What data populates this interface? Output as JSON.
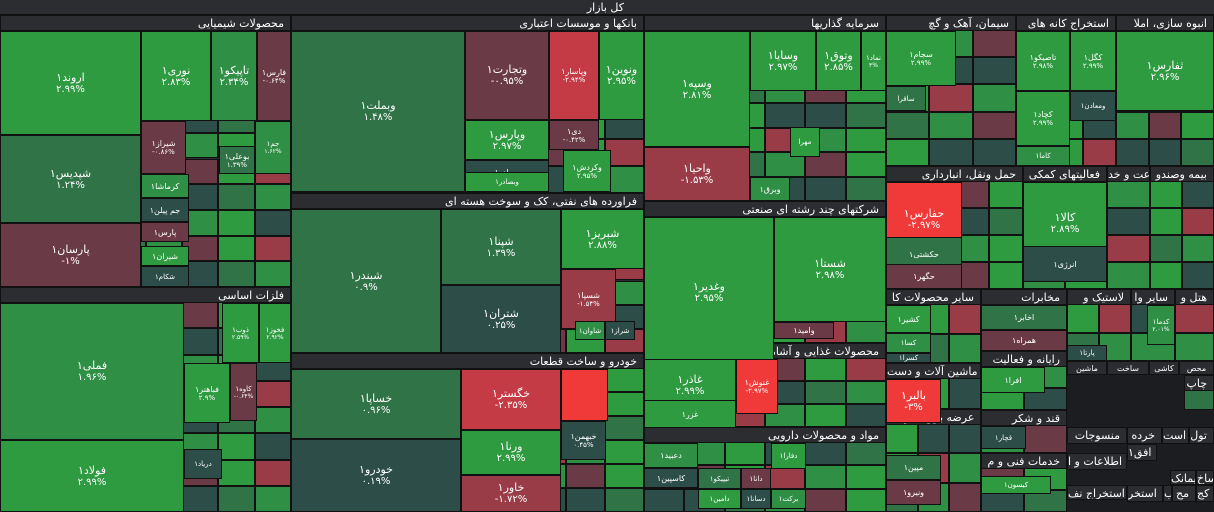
{
  "root_label": "کل بازار",
  "colors": {
    "up_strong": "#2e9b41",
    "up_mid": "#2f8f45",
    "up_soft": "#2f7347",
    "flat": "#2c4d48",
    "down_soft": "#6b3a47",
    "down_mid": "#9a3c48",
    "down_strong": "#c43a45",
    "down_max": "#f03a3a"
  },
  "chart_data": {
    "type": "treemap",
    "title": "کل بازار",
    "sectors": [
      {
        "name": "محصولات شیمیایی",
        "stocks": [
          {
            "name": "اروند۱",
            "change": "۲.۹۹%"
          },
          {
            "name": "نوری۱",
            "change": "۲.۸۳%"
          },
          {
            "name": "تاپیکو۱",
            "change": "۲.۳۴%"
          },
          {
            "name": "فارس۱",
            "change": "-۰.۶۴%"
          },
          {
            "name": "شپدیس۱",
            "change": "۱.۲۴%"
          },
          {
            "name": "شیراز۱",
            "change": "-۰.۸۶%"
          },
          {
            "name": "بوعلی۱",
            "change": "۱.۳۹%"
          },
          {
            "name": "جم۱",
            "change": "۱.۶۲%"
          },
          {
            "name": "کرماشا۱",
            "change": ""
          },
          {
            "name": "جم پیلن۱",
            "change": ""
          },
          {
            "name": "پارسان۱",
            "change": "-۱%"
          },
          {
            "name": "پارس۱",
            "change": ""
          },
          {
            "name": "شیران۱",
            "change": ""
          },
          {
            "name": "شکام۱",
            "change": ""
          }
        ]
      },
      {
        "name": "بانکها و موسسات اعتباری",
        "stocks": [
          {
            "name": "وبملت۱",
            "change": "۱.۴۸%"
          },
          {
            "name": "وتجارت۱",
            "change": "-۰.۹۵%"
          },
          {
            "name": "وپاسار۱",
            "change": "-۲.۹۴%"
          },
          {
            "name": "ونوین۱",
            "change": "۲.۹۵%"
          },
          {
            "name": "وپارس۱",
            "change": "۲.۹۷%"
          },
          {
            "name": "دی۱",
            "change": "-۰.۴۲%"
          },
          {
            "name": "وصادر۱",
            "change": "-۰.۱۹%"
          },
          {
            "name": "وبصادر۱",
            "change": ""
          },
          {
            "name": "وکردش۱",
            "change": "۲.۹۵%"
          }
        ]
      },
      {
        "name": "سرمایه گذاریها",
        "stocks": [
          {
            "name": "وسپه۱",
            "change": "۲.۸۱%"
          },
          {
            "name": "وسایا۱",
            "change": "۲.۹۷%"
          },
          {
            "name": "وتوق۱",
            "change": "۲.۸۵%"
          },
          {
            "name": "نماد۱",
            "change": "۳%"
          },
          {
            "name": "واحیا۱",
            "change": "-۱.۵۳%"
          },
          {
            "name": "مهرا",
            "change": ""
          },
          {
            "name": "وبرق۱",
            "change": ""
          }
        ]
      },
      {
        "name": "سیمان، آهک و گچ",
        "stocks": [
          {
            "name": "سجام۱",
            "change": "۲.۹۹%"
          },
          {
            "name": "ساقرا",
            "change": ""
          }
        ]
      },
      {
        "name": "استخراج کانه های",
        "stocks": [
          {
            "name": "تاصیکو۱",
            "change": "۲.۹۸%"
          },
          {
            "name": "کگل۱",
            "change": "۲.۹۹%"
          },
          {
            "name": "ومعادن۱",
            "change": ""
          },
          {
            "name": "کچاد۱",
            "change": "۲.۹۹%"
          },
          {
            "name": "کاما۱",
            "change": ""
          }
        ]
      },
      {
        "name": "انبوه سازی، املا",
        "stocks": [
          {
            "name": "ثفارس۱",
            "change": "۲.۹۶%"
          }
        ]
      },
      {
        "name": "فلزات اساسی",
        "stocks": [
          {
            "name": "فملی۱",
            "change": "۱.۹۶%"
          },
          {
            "name": "فولاد۱",
            "change": "۲.۹۹%"
          },
          {
            "name": "ذوب۱",
            "change": "۲.۵۹%"
          },
          {
            "name": "فخوز۱",
            "change": "۲.۹۲%"
          },
          {
            "name": "فباهنر۱",
            "change": "۲.۹%"
          },
          {
            "name": "کاوه۱",
            "change": "-۰.۶۴%"
          },
          {
            "name": "دریاد۱",
            "change": ""
          }
        ]
      },
      {
        "name": "فراورده های نفتی، کک و سوخت هسته ای",
        "stocks": [
          {
            "name": "شبندر۱",
            "change": "۰.۹%"
          },
          {
            "name": "شپنا۱",
            "change": "۱.۳۹%"
          },
          {
            "name": "شبریز۱",
            "change": "۲.۸۸%"
          },
          {
            "name": "شتران۱",
            "change": "۰.۲۵%"
          },
          {
            "name": "شسپا۱",
            "change": "-۱.۵۴%"
          },
          {
            "name": "شاوان۱",
            "change": ""
          },
          {
            "name": "شراز۱",
            "change": ""
          }
        ]
      },
      {
        "name": "خودرو و ساخت قطعات",
        "stocks": [
          {
            "name": "خساپا۱",
            "change": "۰.۹۶%"
          },
          {
            "name": "خگستر۱",
            "change": "-۲.۳۵%"
          },
          {
            "name": "خبهمن۱",
            "change": "۰.۴۵%"
          },
          {
            "name": "خودرو۱",
            "change": "۰.۱۹%"
          },
          {
            "name": "ورنا۱",
            "change": "۲.۹۹%"
          },
          {
            "name": "خاور۱",
            "change": "-۱.۷۲%"
          }
        ]
      },
      {
        "name": "شرکتهای چند رشته ای صنعتی",
        "stocks": [
          {
            "name": "وغدیر۱",
            "change": "۲.۹۵%"
          },
          {
            "name": "شستا۱",
            "change": "۲.۹۸%"
          },
          {
            "name": "وامید۱",
            "change": ""
          }
        ]
      },
      {
        "name": "محصولات غذایی و آشامیدنی به جز قند و شکر",
        "stocks": [
          {
            "name": "غاذر۱",
            "change": "۲.۹۹%"
          },
          {
            "name": "غنوش۱",
            "change": "-۲.۹۷%"
          },
          {
            "name": "غزر۱",
            "change": ""
          }
        ]
      },
      {
        "name": "مواد و محصولات دارویی",
        "stocks": [
          {
            "name": "دعبید۱",
            "change": ""
          },
          {
            "name": "کاسپین۱",
            "change": ""
          },
          {
            "name": "تیپیکو۱",
            "change": ""
          },
          {
            "name": "دانا۱",
            "change": ""
          },
          {
            "name": "دامین۱",
            "change": ""
          },
          {
            "name": "دسانا۱",
            "change": ""
          },
          {
            "name": "دفارا۱",
            "change": ""
          },
          {
            "name": "برکت۱",
            "change": ""
          }
        ]
      },
      {
        "name": "حمل ونقل، انبارداری",
        "stocks": [
          {
            "name": "حفارس۱",
            "change": "-۲.۹۷%"
          },
          {
            "name": "حکشتی۱",
            "change": ""
          },
          {
            "name": "حگهر۱",
            "change": ""
          }
        ]
      },
      {
        "name": "فعالیتهای کمکی",
        "stocks": [
          {
            "name": "کالا۱",
            "change": "۲.۸۹%"
          },
          {
            "name": "انرژی۱",
            "change": ""
          }
        ]
      },
      {
        "name": "زراعت و خد",
        "stocks": []
      },
      {
        "name": "بیمه وصندو",
        "stocks": []
      },
      {
        "name": "سایر محصولات کا",
        "stocks": [
          {
            "name": "کشیر۱",
            "change": ""
          },
          {
            "name": "کسا۱",
            "change": ""
          },
          {
            "name": "کسرا۱",
            "change": ""
          }
        ]
      },
      {
        "name": "مخابرات",
        "stocks": [
          {
            "name": "اخابر۱",
            "change": ""
          },
          {
            "name": "همراه۱",
            "change": ""
          }
        ]
      },
      {
        "name": "لاستیک و",
        "stocks": [
          {
            "name": "کدما۱",
            "change": "۲.۰۱%"
          },
          {
            "name": "پارتا۱",
            "change": ""
          }
        ]
      },
      {
        "name": "سایر وا",
        "stocks": []
      },
      {
        "name": "هتل و",
        "stocks": []
      },
      {
        "name": "رایانه و فعالیت",
        "stocks": [
          {
            "name": "افرا۱",
            "change": ""
          }
        ]
      },
      {
        "name": "ماشین آلات و دست",
        "stocks": [
          {
            "name": "بالبر۱",
            "change": "-۳%"
          }
        ]
      },
      {
        "name": "قند و شکر",
        "stocks": [
          {
            "name": "قچار۱",
            "change": ""
          }
        ]
      },
      {
        "name": "عرضه برق، گاز، ب",
        "stocks": [
          {
            "name": "مپین۱",
            "change": ""
          },
          {
            "name": "ونیرو۱",
            "change": ""
          }
        ]
      },
      {
        "name": "خدمات فنی و م",
        "stocks": [
          {
            "name": "کیسون۱",
            "change": ""
          }
        ]
      },
      {
        "name": "ماشین",
        "stocks": []
      },
      {
        "name": "ساخت",
        "stocks": []
      },
      {
        "name": "کاشی",
        "stocks": []
      },
      {
        "name": "محص",
        "stocks": []
      },
      {
        "name": "چاپ",
        "stocks": []
      },
      {
        "name": "منسوجات",
        "stocks": []
      },
      {
        "name": "خرده",
        "stocks": []
      },
      {
        "name": "است",
        "stocks": []
      },
      {
        "name": "تول",
        "stocks": []
      },
      {
        "name": "اطلاعات و ا",
        "stocks": []
      },
      {
        "name": "افق۱",
        "stocks": []
      },
      {
        "name": "ساخ",
        "stocks": []
      },
      {
        "name": "پیمانک",
        "stocks": []
      },
      {
        "name": "استخراج نف",
        "stocks": []
      },
      {
        "name": "استخر",
        "stocks": []
      },
      {
        "name": "مح",
        "stocks": []
      },
      {
        "name": "کج",
        "stocks": []
      },
      {
        "name": "ب",
        "stocks": []
      }
    ]
  }
}
